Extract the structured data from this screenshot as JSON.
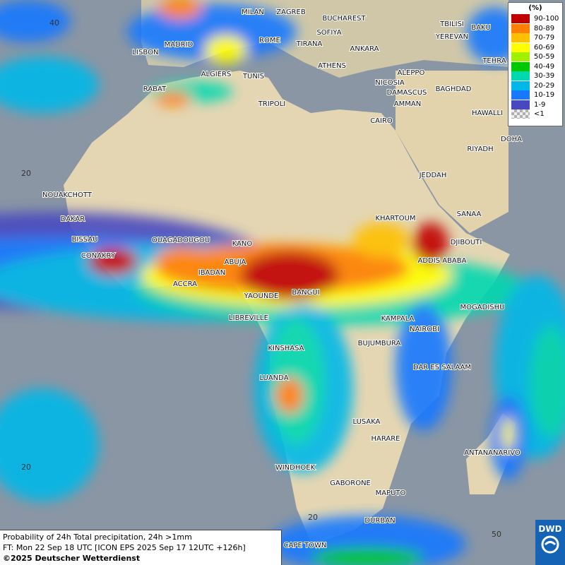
{
  "title_block": {
    "lines": [
      "Probability of 24h Total precipitation, 24h >1mm",
      "FT: Mon 22 Sep 18 UTC [ICON EPS 2025 Sep 17 12UTC +126h]",
      "©2025 Deutscher Wetterdienst"
    ]
  },
  "legend": {
    "unit": "(%)",
    "entries": [
      {
        "label": "90-100",
        "color": "#c00000"
      },
      {
        "label": "80-89",
        "color": "#ff8000"
      },
      {
        "label": "70-79",
        "color": "#ffc000"
      },
      {
        "label": "60-69",
        "color": "#ffff00"
      },
      {
        "label": "50-59",
        "color": "#a0f000"
      },
      {
        "label": "40-49",
        "color": "#00c800"
      },
      {
        "label": "30-39",
        "color": "#00d8b0"
      },
      {
        "label": "20-29",
        "color": "#00b8e8"
      },
      {
        "label": "10-19",
        "color": "#1878ff"
      },
      {
        "label": "1-9",
        "color": "#4848c0"
      },
      {
        "label": "<1",
        "color": "#b0b0b0"
      }
    ]
  },
  "cities": [
    "MILAN",
    "ZAGREB",
    "BUCHAREST",
    "MADRID",
    "ROME",
    "SOFIYA",
    "TIRANA",
    "ANKARA",
    "LISBON",
    "ATHENS",
    "ALGIERS",
    "TUNIS",
    "ALEPPO",
    "RABAT",
    "NICOSIA",
    "BAGHDAD",
    "DAMASCUS",
    "TRIPOLI",
    "AMMAN",
    "HAWALLI",
    "CAIRO",
    "DOHA",
    "RIYADH",
    "TBILISI",
    "YEREVAN",
    "BAKU",
    "TEHRA",
    "JEDDAH",
    "NOUAKCHOTT",
    "DAKAR",
    "KHARTOUM",
    "SANAA",
    "BISSAU",
    "OUAGADOUGOU",
    "DJIBOUTI",
    "KANO",
    "CONAKRY",
    "ABUJA",
    "ADDIS ABABA",
    "IBADAN",
    "ACCRA",
    "YAOUNDE",
    "BANGUI",
    "MOGADISHU",
    "LIBREVILLE",
    "KAMPALA",
    "NAIROBI",
    "BUJUMBURA",
    "KINSHASA",
    "DAR ES SALAAM",
    "LUANDA",
    "LUSAKA",
    "HARARE",
    "ANTANANARIVO",
    "WINDHOEK",
    "GABORONE",
    "MAPUTO",
    "DURBAN",
    "CAPE TOWN"
  ],
  "grid_labels": [
    "40",
    "20",
    "20",
    "20",
    "50"
  ],
  "logo": "DWD"
}
